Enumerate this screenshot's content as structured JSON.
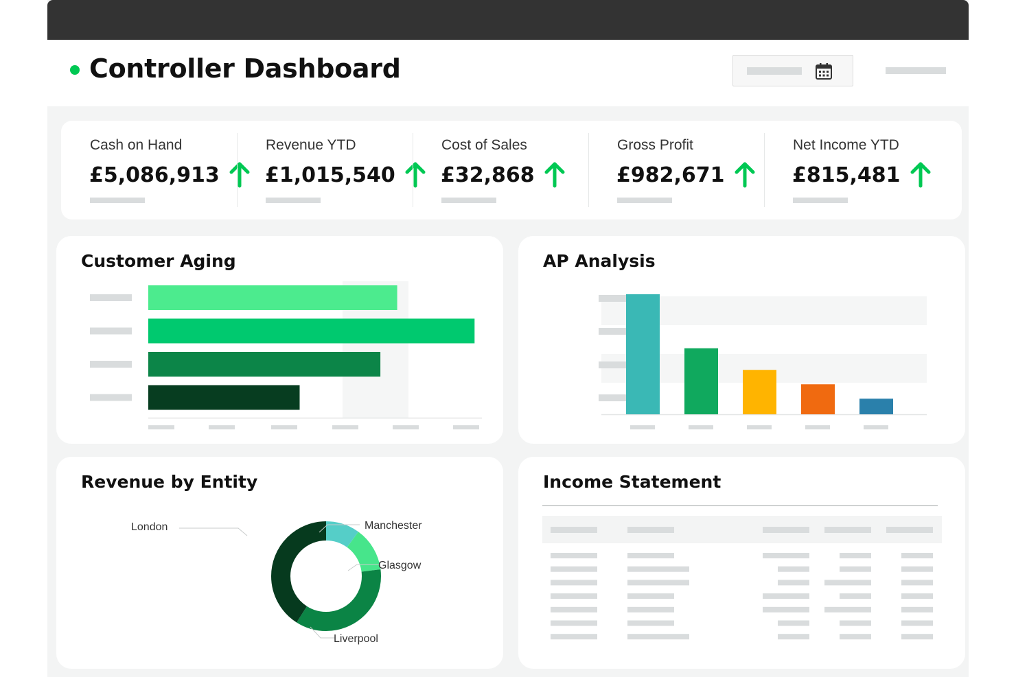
{
  "header": {
    "title": "Controller Dashboard",
    "status_color": "#00c853",
    "date_picker_icon": "calendar-icon"
  },
  "kpis": [
    {
      "label": "Cash on Hand",
      "value": "£5,086,913",
      "trend": "up",
      "trend_icon": "arrow-up-icon"
    },
    {
      "label": "Revenue YTD",
      "value": "£1,015,540",
      "trend": "up",
      "trend_icon": "arrow-up-icon"
    },
    {
      "label": "Cost of Sales",
      "value": "£32,868",
      "trend": "up",
      "trend_icon": "arrow-up-icon"
    },
    {
      "label": "Gross Profit",
      "value": "£982,671",
      "trend": "up",
      "trend_icon": "arrow-up-icon"
    },
    {
      "label": "Net Income YTD",
      "value": "£815,481",
      "trend": "up",
      "trend_icon": "arrow-up-icon"
    }
  ],
  "trend_color": "#00c853",
  "panels": {
    "customer_aging": {
      "title": "Customer Aging"
    },
    "ap_analysis": {
      "title": "AP Analysis"
    },
    "revenue_by_entity": {
      "title": "Revenue by Entity"
    },
    "income_statement": {
      "title": "Income Statement"
    }
  },
  "chart_data": [
    {
      "type": "bar",
      "orientation": "horizontal",
      "values": [
        0.74,
        0.97,
        0.69,
        0.45
      ],
      "colors": [
        "#4ceb8e",
        "#00c96f",
        "#0c8548",
        "#073d20"
      ]
    },
    {
      "type": "bar",
      "values": [
        1.0,
        0.55,
        0.37,
        0.25,
        0.13
      ],
      "colors": [
        "#3ab8b5",
        "#10a95e",
        "#ffb400",
        "#f06a10",
        "#2a80ab"
      ]
    },
    {
      "type": "pie",
      "donut": true,
      "slices": [
        {
          "label": "Manchester",
          "value": 10,
          "color": "#55cec8"
        },
        {
          "label": "Glasgow",
          "value": 13,
          "color": "#47e58b"
        },
        {
          "label": "Liverpool",
          "value": 36,
          "color": "#0b8445"
        },
        {
          "label": "London",
          "value": 41,
          "color": "#063a1e"
        }
      ]
    }
  ]
}
